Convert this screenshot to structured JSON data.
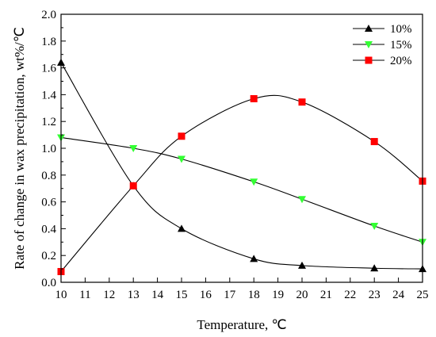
{
  "chart_data": {
    "type": "line",
    "xlabel": "Temperature, ℃",
    "ylabel": "Rate of change in wax precipitation, wt%/℃",
    "xlim": [
      10,
      25
    ],
    "ylim": [
      0.0,
      2.0
    ],
    "x_ticks": [
      "10",
      "11",
      "12",
      "13",
      "14",
      "15",
      "16",
      "17",
      "18",
      "19",
      "20",
      "21",
      "22",
      "23",
      "24",
      "25"
    ],
    "y_ticks": [
      "0.0",
      "0.2",
      "0.4",
      "0.6",
      "0.8",
      "1.0",
      "1.2",
      "1.4",
      "1.6",
      "1.8",
      "2.0"
    ],
    "grid": false,
    "legend_position": "top-right",
    "series": [
      {
        "name": "10%",
        "marker": "triangle-up",
        "color": "#000000",
        "x": [
          10,
          13,
          15,
          18,
          20,
          23,
          25
        ],
        "y": [
          1.64,
          0.72,
          0.4,
          0.175,
          0.125,
          0.105,
          0.1
        ]
      },
      {
        "name": "15%",
        "marker": "triangle-down",
        "color": "#33ff33",
        "x": [
          10,
          13,
          15,
          18,
          20,
          23,
          25
        ],
        "y": [
          1.08,
          1.0,
          0.92,
          0.75,
          0.62,
          0.42,
          0.3
        ]
      },
      {
        "name": "20%",
        "marker": "square",
        "color": "#ff0000",
        "x": [
          10,
          13,
          15,
          18,
          20,
          23,
          25
        ],
        "y": [
          0.08,
          0.72,
          1.09,
          1.37,
          1.345,
          1.05,
          0.755
        ]
      }
    ]
  }
}
